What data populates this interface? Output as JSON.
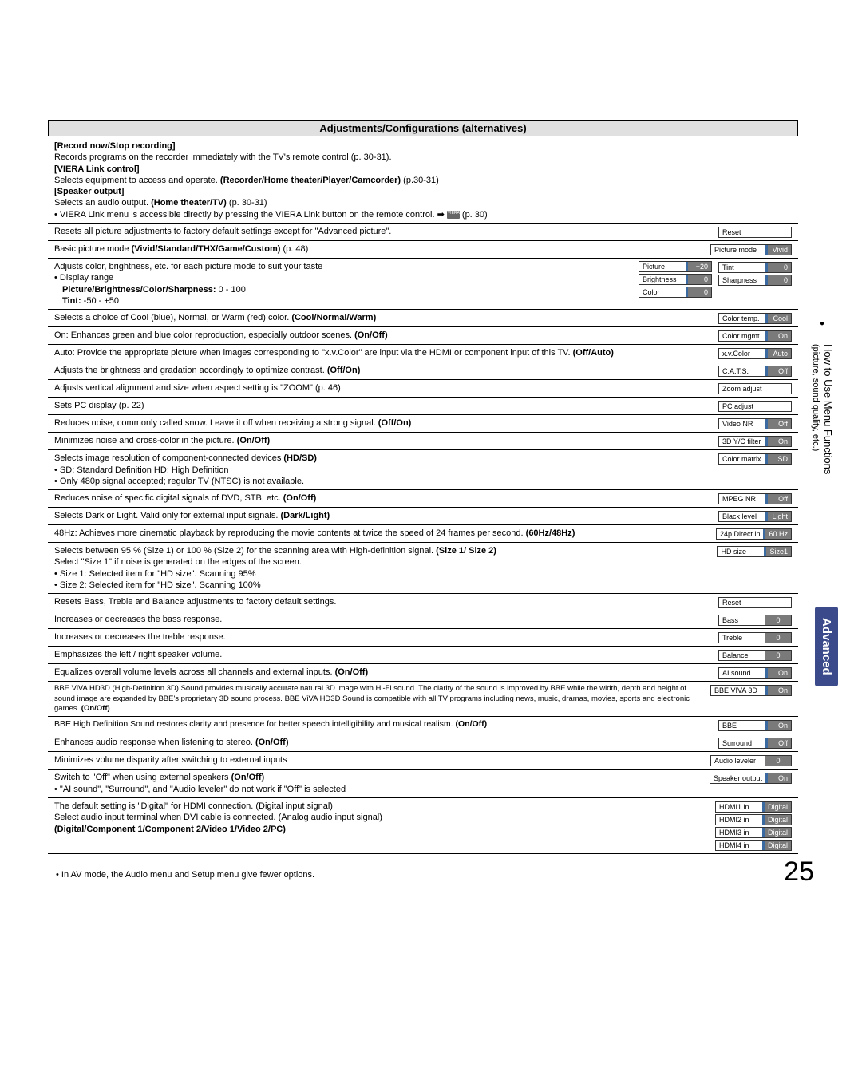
{
  "header": "Adjustments/Configurations (alternatives)",
  "viera": {
    "t1": "[Record now/Stop recording]",
    "l1": "Records programs on the recorder immediately with the TV's remote control (p. 30-31).",
    "t2": "[VIERA Link control]",
    "l2a": "Selects equipment to access and operate. ",
    "l2b": "(Recorder/Home theater/Player/Camcorder)",
    "l2c": " (p.30-31)",
    "t3": "[Speaker output]",
    "l3a": "Selects an audio output. ",
    "l3b": "(Home theater/TV)",
    "l3c": " (p. 30-31)",
    "l4a": "VIERA Link menu is accessible directly by pressing the VIERA Link button on the remote control. ",
    "l4b": " (p. 30)"
  },
  "reset_pic": {
    "text": "Resets all picture adjustments to factory default settings except for \"Advanced picture\".",
    "ctrl": {
      "label": "Reset"
    }
  },
  "pic_mode": {
    "text_a": "Basic picture mode ",
    "text_b": "(Vivid/Standard/THX/Game/Custom)",
    "text_c": " (p. 48)",
    "ctrl": {
      "label": "Picture mode",
      "value": "Vivid"
    }
  },
  "pic_adjust": {
    "l1": "Adjusts color, brightness, etc. for each picture mode to suit your taste",
    "l2": "Display range",
    "l3a": "Picture/Brightness/Color/Sharpness:",
    "l3b": "   0 - 100",
    "l4a": "Tint:",
    "l4b": "                                                        -50 - +50",
    "small": [
      {
        "label": "Picture",
        "value": "+20"
      },
      {
        "label": "Brightness",
        "value": "0"
      },
      {
        "label": "Color",
        "value": "0"
      }
    ],
    "right": [
      {
        "label": "Tint",
        "value": "0"
      },
      {
        "label": "Sharpness",
        "value": "0"
      }
    ]
  },
  "color_temp": {
    "text_a": "Selects a choice of Cool (blue), Normal, or Warm (red) color. ",
    "text_b": "(Cool/Normal/Warm)",
    "ctrl": {
      "label": "Color temp.",
      "value": "Cool"
    }
  },
  "color_mgmt": {
    "text_a": "On: Enhances green and blue color reproduction, especially outdoor scenes. ",
    "text_b": "(On/Off)",
    "ctrl": {
      "label": "Color mgmt.",
      "value": "On"
    }
  },
  "xvcolor": {
    "text_a": "Auto: Provide the appropriate picture when images corresponding to \"x.v.Color\" are input via the HDMI or component input of this TV. ",
    "text_b": "(Off/Auto)",
    "ctrl": {
      "label": "x.v.Color",
      "value": "Auto"
    }
  },
  "cats": {
    "text_a": "Adjusts the brightness and gradation accordingly to optimize contrast. ",
    "text_b": "(Off/On)",
    "ctrl": {
      "label": "C.A.T.S.",
      "value": "Off"
    }
  },
  "zoom": {
    "text": "Adjusts vertical alignment and size when aspect setting is \"ZOOM\" (p. 46)",
    "ctrl": {
      "label": "Zoom adjust"
    }
  },
  "pc": {
    "text": "Sets PC display (p. 22)",
    "ctrl": {
      "label": "PC adjust"
    }
  },
  "video_nr": {
    "text_a": "Reduces noise, commonly called snow. Leave it off when receiving a strong signal. ",
    "text_b": "(Off/On)",
    "ctrl": {
      "label": "Video NR",
      "value": "Off"
    }
  },
  "yc_filter": {
    "text_a": "Minimizes noise and cross-color in the picture. ",
    "text_b": "(On/Off)",
    "ctrl": {
      "label": "3D Y/C filter",
      "value": "On"
    }
  },
  "color_matrix": {
    "l1a": "Selects image resolution of component-connected devices ",
    "l1b": "(HD/SD)",
    "l2": "SD: Standard Definition       HD: High Definition",
    "l3": "Only 480p signal accepted; regular TV (NTSC) is not available.",
    "ctrl": {
      "label": "Color matrix",
      "value": "SD"
    }
  },
  "mpeg_nr": {
    "text_a": "Reduces noise of specific digital signals of DVD, STB, etc. ",
    "text_b": "(On/Off)",
    "ctrl": {
      "label": "MPEG NR",
      "value": "Off"
    }
  },
  "black_lvl": {
    "text_a": "Selects Dark or Light. Valid only for external input signals. ",
    "text_b": "(Dark/Light)",
    "ctrl": {
      "label": "Black level",
      "value": "Light"
    }
  },
  "direct_24p": {
    "text_a": "48Hz: Achieves more cinematic playback by reproducing the movie contents at twice the speed of 24 frames per second. ",
    "text_b": "(60Hz/48Hz)",
    "ctrl": {
      "label": "24p Direct in",
      "value": "60 Hz"
    }
  },
  "hd_size": {
    "l1a": "Selects between 95 % (Size 1) or 100 % (Size 2) for the scanning area with High-definition signal. ",
    "l1b": "(Size 1/ Size 2)",
    "l2": "Select \"Size 1\" if noise is generated on the edges of the screen.",
    "l3": "Size 1: Selected item for \"HD size\". Scanning 95%",
    "l4": "Size 2: Selected item for \"HD size\". Scanning 100%",
    "ctrl": {
      "label": "HD size",
      "value": "Size1"
    }
  },
  "reset_snd": {
    "text": "Resets Bass, Treble and Balance adjustments to factory default settings.",
    "ctrl": {
      "label": "Reset"
    }
  },
  "bass": {
    "text": "Increases or decreases the bass response.",
    "ctrl": {
      "label": "Bass",
      "value": "0"
    }
  },
  "treble": {
    "text": "Increases or decreases the treble response.",
    "ctrl": {
      "label": "Treble",
      "value": "0"
    }
  },
  "balance": {
    "text": "Emphasizes the left / right speaker volume.",
    "ctrl": {
      "label": "Balance",
      "value": "0"
    }
  },
  "ai_sound": {
    "text_a": "Equalizes overall volume levels across all channels and external inputs. ",
    "text_b": "(On/Off)",
    "ctrl": {
      "label": "AI sound",
      "value": "On"
    }
  },
  "bbe_viva": {
    "text_a": "BBE ViVA HD3D (High-Definition 3D) Sound provides musically accurate natural 3D image with Hi-Fi sound. The clarity of the sound is improved by BBE while the width, depth and height of sound image are expanded by BBE's proprietary 3D sound process. BBE ViVA HD3D Sound is compatible with all TV programs including news, music, dramas, movies, sports and electronic games. ",
    "text_b": "(On/Off)",
    "ctrl": {
      "label": "BBE VIVA 3D",
      "value": "On"
    }
  },
  "bbe": {
    "text_a": "BBE High Definition Sound restores clarity and presence for better speech intelligibility and musical realism. ",
    "text_b": "(On/Off)",
    "ctrl": {
      "label": "BBE",
      "value": "On"
    }
  },
  "surround": {
    "text_a": "Enhances audio response when listening to stereo. ",
    "text_b": "(On/Off)",
    "ctrl": {
      "label": "Surround",
      "value": "Off"
    }
  },
  "audio_lvl": {
    "text": "Minimizes volume disparity after switching to external inputs",
    "ctrl": {
      "label": "Audio leveler",
      "value": "0"
    }
  },
  "speaker": {
    "l1a": "Switch to \"Off\" when using external speakers ",
    "l1b": "(On/Off)",
    "l2": "\"AI sound\", \"Surround\", and \"Audio leveler\" do not work if \"Off\" is selected",
    "ctrl": {
      "label": "Speaker output",
      "value": "On"
    }
  },
  "hdmi": {
    "l1": "The default setting is \"Digital\" for HDMI connection. (Digital input signal)",
    "l2": "Select audio input terminal when DVI cable is connected. (Analog audio input signal)",
    "l3": "(Digital/Component 1/Component 2/Video 1/Video 2/PC)",
    "ctrls": [
      {
        "label": "HDMI1 in",
        "value": "Digital"
      },
      {
        "label": "HDMI2 in",
        "value": "Digital"
      },
      {
        "label": "HDMI3 in",
        "value": "Digital"
      },
      {
        "label": "HDMI4 in",
        "value": "Digital"
      }
    ]
  },
  "footnote": "In AV mode, the Audio menu and Setup menu give fewer options.",
  "page_num": "25",
  "side1": "How to Use Menu Functions",
  "side2": "(picture, sound quality, etc.)",
  "advanced": "Advanced"
}
